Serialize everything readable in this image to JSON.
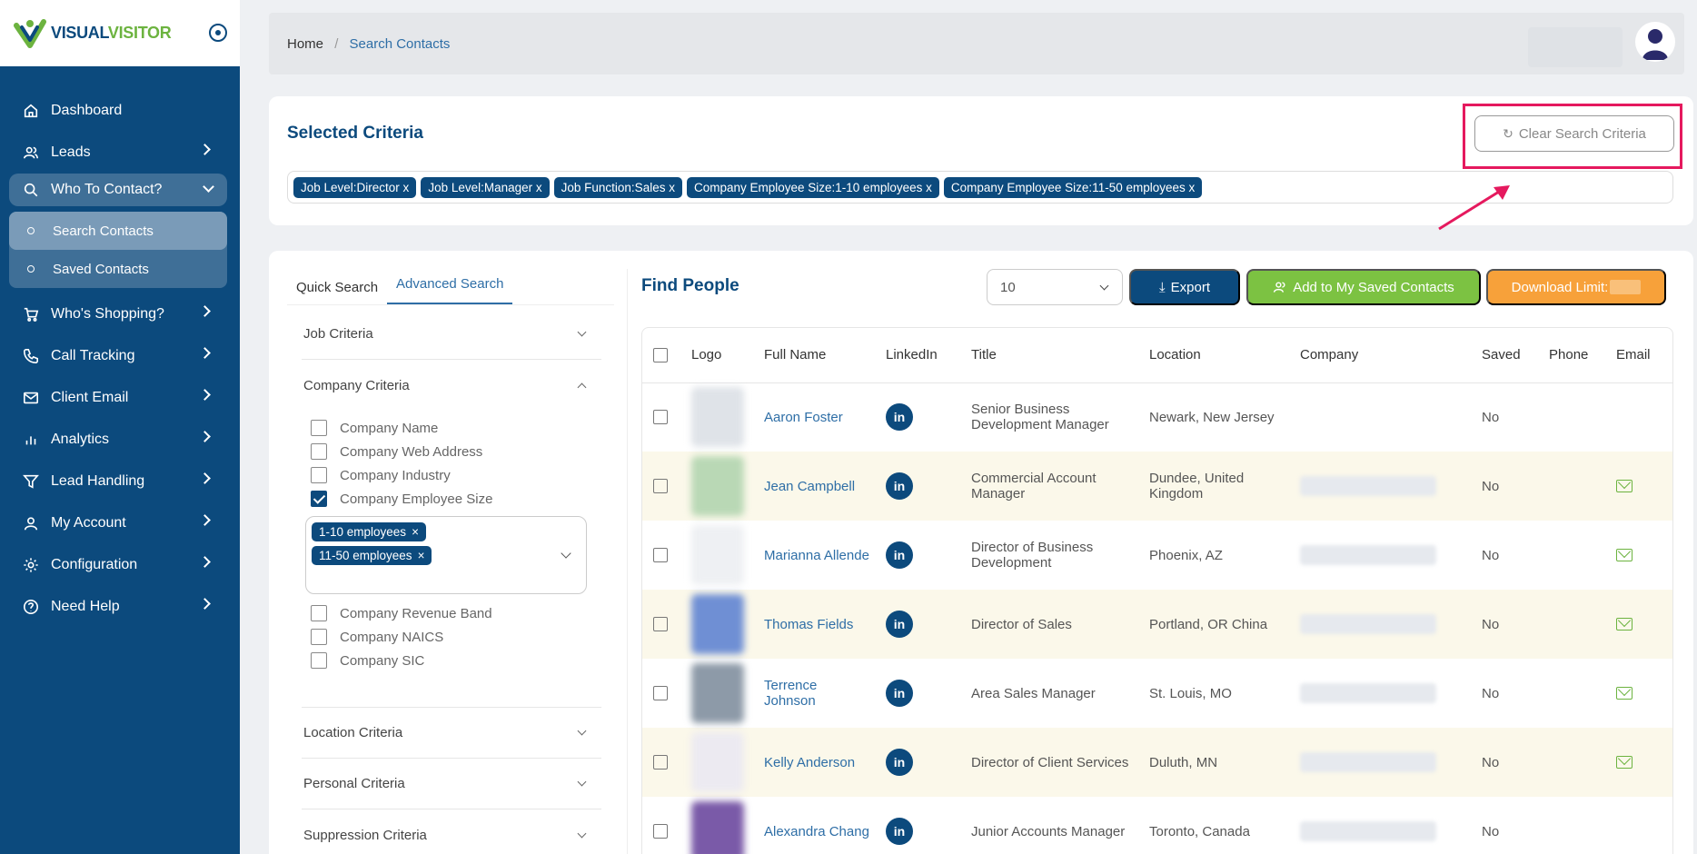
{
  "logo": {
    "part1": "VISUAL",
    "part2": "VISITOR"
  },
  "sidebar": {
    "items": [
      {
        "label": "Dashboard",
        "icon": "home-icon"
      },
      {
        "label": "Leads",
        "icon": "users-icon"
      },
      {
        "label": "Who To Contact?",
        "icon": "search-icon"
      },
      {
        "label": "Who's Shopping?",
        "icon": "cart-icon"
      },
      {
        "label": "Call Tracking",
        "icon": "phone-icon"
      },
      {
        "label": "Client Email",
        "icon": "mail-icon"
      },
      {
        "label": "Analytics",
        "icon": "bar-chart-icon"
      },
      {
        "label": "Lead Handling",
        "icon": "filter-icon"
      },
      {
        "label": "My Account",
        "icon": "user-icon"
      },
      {
        "label": "Configuration",
        "icon": "gear-icon"
      },
      {
        "label": "Need Help",
        "icon": "help-icon"
      }
    ],
    "sub_items": [
      {
        "label": "Search Contacts"
      },
      {
        "label": "Saved Contacts"
      }
    ]
  },
  "breadcrumb": {
    "home": "Home",
    "sep": "/",
    "current": "Search Contacts"
  },
  "criteria": {
    "title": "Selected Criteria",
    "clear_label": "Clear Search Criteria",
    "chips": [
      "Job Level:Director x",
      "Job Level:Manager x",
      "Job Function:Sales x",
      "Company Employee Size:1-10 employees x",
      "Company Employee Size:11-50 employees x"
    ]
  },
  "search_tabs": {
    "quick": "Quick Search",
    "advanced": "Advanced Search"
  },
  "accordion": {
    "job": "Job Criteria",
    "company": "Company Criteria",
    "location": "Location Criteria",
    "personal": "Personal Criteria",
    "suppression": "Suppression Criteria"
  },
  "company_options": {
    "top": [
      "Company Name",
      "Company Web Address",
      "Company Industry",
      "Company Employee Size"
    ],
    "bottom": [
      "Company Revenue Band",
      "Company NAICS",
      "Company SIC"
    ],
    "size_chips": [
      "1-10 employees",
      "11-50 employees"
    ],
    "chip_x": "×"
  },
  "find": {
    "title": "Find People",
    "page_size": "10",
    "export": "Export",
    "save": "Add to My Saved Contacts",
    "limit": "Download Limit:"
  },
  "table": {
    "headers": [
      "Logo",
      "Full Name",
      "LinkedIn",
      "Title",
      "Location",
      "Company",
      "Saved",
      "Phone",
      "Email"
    ],
    "linkedin_glyph": "in",
    "rows": [
      {
        "name": "Aaron Foster",
        "title": "Senior Business Development Manager",
        "location": "Newark, New Jersey",
        "saved": "No",
        "email": false,
        "logo_color": "#dfe3e8"
      },
      {
        "name": "Jean Campbell",
        "title": "Commercial Account Manager",
        "location": "Dundee, United Kingdom",
        "saved": "No",
        "email": true,
        "logo_color": "#b9d8b5"
      },
      {
        "name": "Marianna Allende",
        "title": "Director of Business Development",
        "location": "Phoenix, AZ",
        "saved": "No",
        "email": true,
        "logo_color": "#eef0f3"
      },
      {
        "name": "Thomas Fields",
        "title": "Director of Sales",
        "location": "Portland, OR China",
        "saved": "No",
        "email": true,
        "logo_color": "#6f8fd4"
      },
      {
        "name": "Terrence Johnson",
        "title": "Area Sales Manager",
        "location": "St. Louis, MO",
        "saved": "No",
        "email": true,
        "logo_color": "#8d9aa8"
      },
      {
        "name": "Kelly Anderson",
        "title": "Director of Client Services",
        "location": "Duluth, MN",
        "saved": "No",
        "email": true,
        "logo_color": "#eceaf1"
      },
      {
        "name": "Alexandra Chang",
        "title": "Junior Accounts Manager",
        "location": "Toronto, Canada",
        "saved": "No",
        "email": false,
        "logo_color": "#7a5aa8"
      }
    ]
  },
  "colors": {
    "brand_navy": "#0c4a7d",
    "brand_green": "#7cc242",
    "accent_orange": "#f7a13a",
    "highlight_red": "#e5195e"
  }
}
